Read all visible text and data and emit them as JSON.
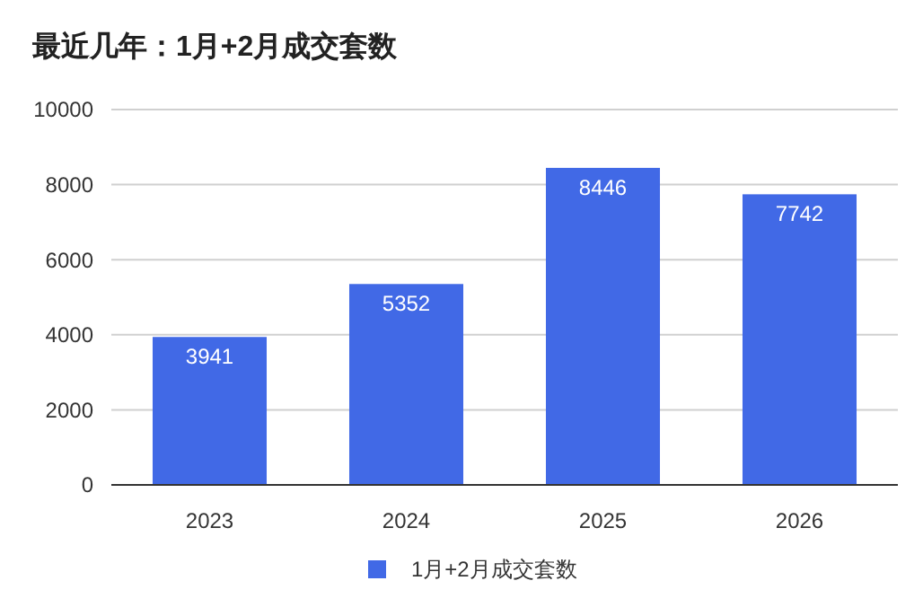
{
  "chart_data": {
    "type": "bar",
    "title": "最近几年：1月+2月成交套数",
    "categories": [
      "2023",
      "2024",
      "2025",
      "2026"
    ],
    "series": [
      {
        "name": "1月+2月成交套数",
        "color": "#4169e6",
        "values": [
          3941,
          5352,
          8446,
          7742
        ]
      }
    ],
    "ylim": [
      0,
      10000
    ],
    "yticks": [
      0,
      2000,
      4000,
      6000,
      8000,
      10000
    ],
    "grid": "y",
    "legend": "bottom",
    "data_labels": true
  }
}
